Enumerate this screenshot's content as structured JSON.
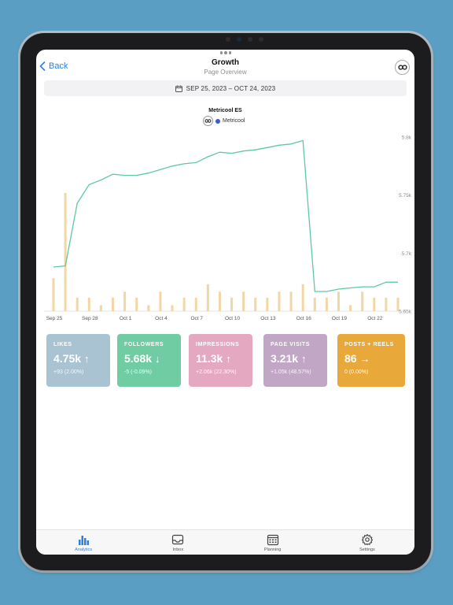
{
  "nav": {
    "back_label": "Back",
    "title": "Growth",
    "subtitle": "Page Overview"
  },
  "date_range": "SEP 25, 2023 – OCT 24, 2023",
  "chart_data": {
    "type": "bar",
    "title": "Metricool ES",
    "source_label": "Metricool",
    "categories": [
      "Sep 25",
      "Sep 26",
      "Sep 27",
      "Sep 28",
      "Sep 29",
      "Sep 30",
      "Oct 1",
      "Oct 2",
      "Oct 3",
      "Oct 4",
      "Oct 5",
      "Oct 6",
      "Oct 7",
      "Oct 8",
      "Oct 9",
      "Oct 10",
      "Oct 11",
      "Oct 12",
      "Oct 13",
      "Oct 14",
      "Oct 15",
      "Oct 16",
      "Oct 17",
      "Oct 18",
      "Oct 19",
      "Oct 20",
      "Oct 21",
      "Oct 22",
      "Oct 23",
      "Oct 24"
    ],
    "x_tick_labels": [
      "Sep 25",
      "Sep 28",
      "Oct 1",
      "Oct 4",
      "Oct 7",
      "Oct 10",
      "Oct 13",
      "Oct 16",
      "Oct 19",
      "Oct 22"
    ],
    "series": [
      {
        "kind": "bar",
        "color": "#f1d6a6",
        "values": [
          0.22,
          0.79,
          0.09,
          0.09,
          0.04,
          0.09,
          0.13,
          0.09,
          0.04,
          0.13,
          0.04,
          0.09,
          0.09,
          0.18,
          0.13,
          0.09,
          0.13,
          0.09,
          0.09,
          0.13,
          0.13,
          0.18,
          0.09,
          0.09,
          0.13,
          0.04,
          0.13,
          0.09,
          0.09,
          0.09
        ]
      },
      {
        "kind": "line",
        "color": "#5ec9a0",
        "values": [
          5688,
          5689,
          5743,
          5759,
          5763,
          5768,
          5767,
          5767,
          5769,
          5772,
          5775,
          5777,
          5778,
          5783,
          5787,
          5786,
          5788,
          5789,
          5791,
          5793,
          5794,
          5797,
          5667,
          5667,
          5669,
          5670,
          5671,
          5671,
          5675,
          5675
        ]
      }
    ],
    "y_right_ticks": [
      "5.8k",
      "5.75k",
      "5.7k",
      "5.65k"
    ],
    "ylim_right": [
      5650,
      5800
    ],
    "grid": false
  },
  "cards": [
    {
      "label": "LIKES",
      "value": "4.75k",
      "arrow": "↑",
      "change": "+93 (2.00%)",
      "color": "#a9c3d3"
    },
    {
      "label": "FOLLOWERS",
      "value": "5.68k",
      "arrow": "↓",
      "change": "-5 (-0.09%)",
      "color": "#6fcca3"
    },
    {
      "label": "IMPRESSIONS",
      "value": "11.3k",
      "arrow": "↑",
      "change": "+2.06k (22.30%)",
      "color": "#e5a8c1"
    },
    {
      "label": "PAGE VISITS",
      "value": "3.21k",
      "arrow": "↑",
      "change": "+1.05k (48.57%)",
      "color": "#c2a6c6"
    },
    {
      "label": "POSTS + REELS",
      "value": "86",
      "arrow": "→",
      "change": "0 (0.00%)",
      "color": "#e9a93a"
    }
  ],
  "tabs": [
    {
      "label": "Analytics",
      "icon": "bar-chart-icon",
      "active": true
    },
    {
      "label": "Inbox",
      "icon": "inbox-icon",
      "active": false
    },
    {
      "label": "Planning",
      "icon": "calendar-icon",
      "active": false
    },
    {
      "label": "Settings",
      "icon": "gear-icon",
      "active": false
    }
  ]
}
